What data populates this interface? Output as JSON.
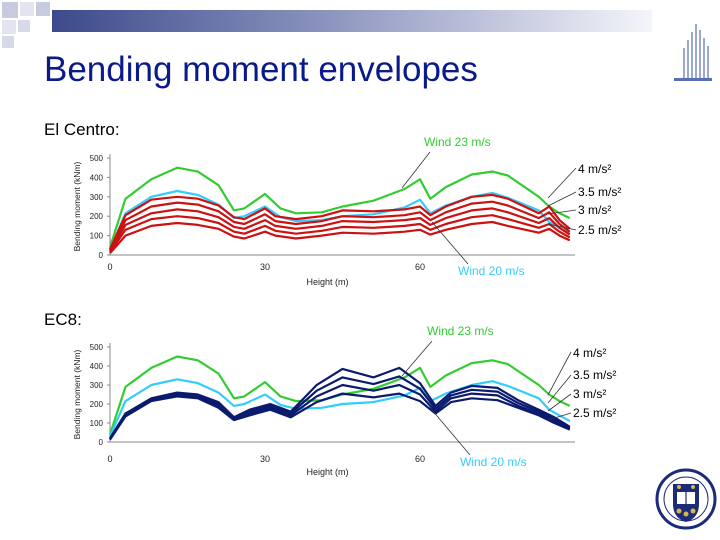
{
  "slide": {
    "title": "Bending moment envelopes",
    "section1": "El Centro:",
    "section2": "EC8:",
    "colors": {
      "title": "#0a1a8a",
      "wind23": "#33cc33",
      "wind20": "#33ccff",
      "elcentro": "#cc1111",
      "ec8": "#0a1a6e"
    }
  },
  "chart_data": [
    {
      "type": "line",
      "ylabel": "Bending moment (kNm)",
      "xlabel": "Height (m)",
      "x_ticks": [
        "0",
        "30",
        "60"
      ],
      "y_ticks": [
        "0",
        "100",
        "200",
        "300",
        "400",
        "500"
      ],
      "xlim": [
        0,
        90
      ],
      "ylim": [
        0,
        500
      ],
      "grid": false,
      "annotations": {
        "wind23": "Wind 23 m/s",
        "wind20": "Wind 20 m/s",
        "acc4": "4 m/s²",
        "acc35": "3.5 m/s²",
        "acc3": "3 m/s²",
        "acc25": "2.5 m/s²"
      },
      "series": [
        {
          "key": "wind23",
          "x": [
            0,
            3,
            8,
            13,
            17,
            21,
            24,
            26,
            30,
            33,
            36,
            41,
            45,
            51,
            57,
            60,
            62,
            65,
            70,
            74,
            77,
            83,
            85,
            87,
            89
          ],
          "y": [
            40,
            290,
            390,
            450,
            430,
            360,
            230,
            240,
            315,
            240,
            215,
            220,
            250,
            280,
            340,
            390,
            290,
            350,
            415,
            430,
            410,
            300,
            250,
            215,
            190
          ]
        },
        {
          "key": "wind20",
          "x": [
            0,
            3,
            8,
            13,
            17,
            21,
            24,
            26,
            30,
            33,
            36,
            41,
            45,
            51,
            57,
            60,
            62,
            65,
            70,
            74,
            77,
            83,
            85,
            87,
            89
          ],
          "y": [
            30,
            215,
            300,
            330,
            310,
            260,
            190,
            200,
            250,
            195,
            175,
            180,
            200,
            210,
            245,
            285,
            215,
            255,
            300,
            320,
            295,
            230,
            170,
            140,
            110
          ]
        },
        {
          "key": "elcentro",
          "x": [
            0,
            3,
            8,
            13,
            17,
            21,
            24,
            26,
            30,
            32,
            36,
            41,
            45,
            51,
            57,
            60,
            62,
            65,
            70,
            74,
            77,
            83,
            85,
            87,
            89
          ],
          "y": [
            30,
            205,
            285,
            300,
            290,
            255,
            195,
            185,
            240,
            200,
            185,
            200,
            230,
            225,
            235,
            250,
            205,
            250,
            300,
            310,
            290,
            215,
            250,
            180,
            135
          ]
        },
        {
          "key": "elcentro",
          "x": [
            0,
            3,
            8,
            13,
            17,
            21,
            24,
            26,
            30,
            32,
            36,
            41,
            45,
            51,
            57,
            60,
            62,
            65,
            70,
            74,
            77,
            83,
            85,
            87,
            89
          ],
          "y": [
            25,
            180,
            250,
            270,
            260,
            225,
            170,
            160,
            210,
            175,
            160,
            175,
            200,
            195,
            205,
            220,
            180,
            220,
            265,
            275,
            255,
            190,
            220,
            160,
            120
          ]
        },
        {
          "key": "elcentro",
          "x": [
            0,
            3,
            8,
            13,
            17,
            21,
            24,
            26,
            30,
            32,
            36,
            41,
            45,
            51,
            57,
            60,
            62,
            65,
            70,
            74,
            77,
            83,
            85,
            87,
            89
          ],
          "y": [
            20,
            155,
            215,
            235,
            225,
            195,
            145,
            135,
            180,
            150,
            135,
            150,
            175,
            170,
            180,
            190,
            155,
            190,
            230,
            240,
            220,
            165,
            190,
            140,
            105
          ]
        },
        {
          "key": "elcentro",
          "x": [
            0,
            3,
            8,
            13,
            17,
            21,
            24,
            26,
            30,
            32,
            36,
            41,
            45,
            51,
            57,
            60,
            62,
            65,
            70,
            74,
            77,
            83,
            85,
            87,
            89
          ],
          "y": [
            15,
            130,
            185,
            200,
            190,
            165,
            120,
            110,
            150,
            125,
            110,
            125,
            145,
            140,
            150,
            160,
            130,
            160,
            195,
            205,
            185,
            140,
            160,
            120,
            90
          ]
        },
        {
          "key": "elcentro",
          "x": [
            0,
            3,
            8,
            13,
            17,
            21,
            24,
            26,
            30,
            32,
            36,
            41,
            45,
            51,
            57,
            60,
            62,
            65,
            70,
            74,
            77,
            83,
            85,
            87,
            89
          ],
          "y": [
            10,
            100,
            150,
            165,
            155,
            135,
            95,
            85,
            120,
            100,
            85,
            100,
            115,
            110,
            120,
            130,
            105,
            130,
            160,
            170,
            150,
            115,
            135,
            100,
            75
          ]
        }
      ]
    },
    {
      "type": "line",
      "ylabel": "Bending moment (kNm)",
      "xlabel": "Height (m)",
      "x_ticks": [
        "0",
        "30",
        "60"
      ],
      "y_ticks": [
        "0",
        "100",
        "200",
        "300",
        "400",
        "500"
      ],
      "xlim": [
        0,
        90
      ],
      "ylim": [
        0,
        500
      ],
      "grid": false,
      "annotations": {
        "wind23": "Wind 23 m/s",
        "wind20": "Wind 20 m/s",
        "acc4": "4 m/s²",
        "acc35": "3.5 m/s²",
        "acc3": "3 m/s²",
        "acc25": "2.5 m/s²"
      },
      "series": [
        {
          "key": "wind23",
          "x": [
            0,
            3,
            8,
            13,
            17,
            21,
            24,
            26,
            30,
            33,
            36,
            41,
            45,
            51,
            57,
            60,
            62,
            65,
            70,
            74,
            77,
            83,
            85,
            87,
            89
          ],
          "y": [
            40,
            290,
            390,
            450,
            430,
            360,
            230,
            240,
            315,
            240,
            215,
            220,
            250,
            280,
            340,
            390,
            290,
            350,
            415,
            430,
            410,
            300,
            250,
            215,
            190
          ]
        },
        {
          "key": "wind20",
          "x": [
            0,
            3,
            8,
            13,
            17,
            21,
            24,
            26,
            30,
            33,
            36,
            41,
            45,
            51,
            57,
            60,
            62,
            65,
            70,
            74,
            77,
            83,
            85,
            87,
            89
          ],
          "y": [
            30,
            215,
            300,
            330,
            310,
            260,
            190,
            200,
            250,
            195,
            175,
            180,
            200,
            210,
            245,
            285,
            215,
            255,
            300,
            320,
            295,
            230,
            170,
            140,
            110
          ]
        },
        {
          "key": "ec8",
          "x": [
            0,
            3,
            8,
            13,
            17,
            21,
            24,
            27,
            31,
            35,
            40,
            45,
            51,
            56,
            60,
            63,
            66,
            70,
            75,
            79,
            83,
            86,
            89
          ],
          "y": [
            20,
            150,
            230,
            260,
            250,
            210,
            130,
            170,
            200,
            160,
            300,
            385,
            340,
            390,
            310,
            190,
            260,
            295,
            285,
            220,
            170,
            130,
            80
          ]
        },
        {
          "key": "ec8",
          "x": [
            0,
            3,
            8,
            13,
            17,
            21,
            24,
            27,
            31,
            35,
            40,
            45,
            51,
            56,
            60,
            63,
            66,
            70,
            75,
            79,
            83,
            86,
            89
          ],
          "y": [
            18,
            145,
            225,
            250,
            240,
            200,
            125,
            160,
            190,
            150,
            270,
            340,
            305,
            345,
            280,
            175,
            245,
            275,
            265,
            205,
            160,
            120,
            75
          ]
        },
        {
          "key": "ec8",
          "x": [
            0,
            3,
            8,
            13,
            17,
            21,
            24,
            27,
            31,
            35,
            40,
            45,
            51,
            56,
            60,
            63,
            66,
            70,
            75,
            79,
            83,
            86,
            89
          ],
          "y": [
            15,
            140,
            220,
            245,
            235,
            190,
            120,
            150,
            180,
            140,
            240,
            300,
            270,
            300,
            250,
            160,
            230,
            255,
            245,
            190,
            150,
            110,
            70
          ]
        },
        {
          "key": "ec8",
          "x": [
            0,
            3,
            8,
            13,
            17,
            21,
            24,
            27,
            31,
            35,
            40,
            45,
            51,
            56,
            60,
            63,
            66,
            70,
            75,
            79,
            83,
            86,
            89
          ],
          "y": [
            12,
            135,
            215,
            240,
            230,
            180,
            115,
            140,
            170,
            130,
            210,
            255,
            235,
            255,
            215,
            150,
            210,
            230,
            220,
            180,
            140,
            100,
            65
          ]
        }
      ]
    }
  ]
}
